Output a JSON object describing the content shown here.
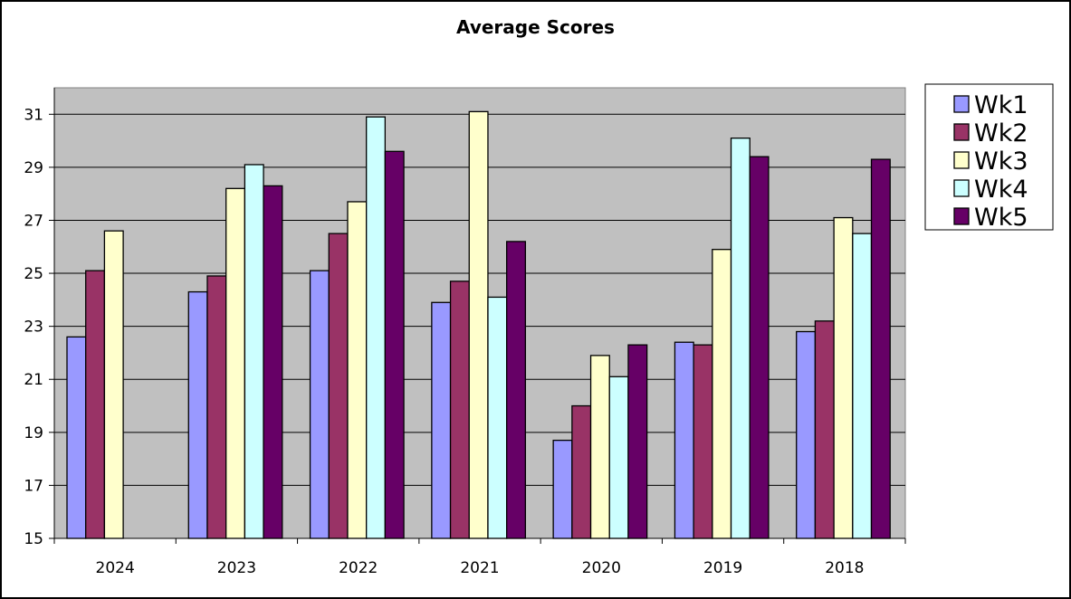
{
  "chart_data": {
    "type": "bar",
    "title": "Average Scores",
    "xlabel": "",
    "ylabel": "",
    "categories": [
      "2024",
      "2023",
      "2022",
      "2021",
      "2020",
      "2019",
      "2018"
    ],
    "ylim": [
      15,
      32
    ],
    "yticks": [
      15,
      17,
      19,
      21,
      23,
      25,
      27,
      29,
      31
    ],
    "grid": true,
    "legend_position": "right",
    "plot_background": "#C0C0C0",
    "series": [
      {
        "name": "Wk1",
        "color": "#9999FF",
        "values": [
          22.6,
          24.3,
          25.1,
          23.9,
          18.7,
          22.4,
          22.8
        ]
      },
      {
        "name": "Wk2",
        "color": "#993366",
        "values": [
          25.1,
          24.9,
          26.5,
          24.7,
          20.0,
          22.3,
          23.2
        ]
      },
      {
        "name": "Wk3",
        "color": "#FFFFCC",
        "values": [
          26.6,
          28.2,
          27.7,
          31.1,
          21.9,
          25.9,
          27.1
        ]
      },
      {
        "name": "Wk4",
        "color": "#CCFFFF",
        "values": [
          null,
          29.1,
          30.9,
          24.1,
          21.1,
          30.1,
          26.5
        ]
      },
      {
        "name": "Wk5",
        "color": "#660066",
        "values": [
          null,
          28.3,
          29.6,
          26.2,
          22.3,
          29.4,
          29.3
        ]
      }
    ]
  }
}
